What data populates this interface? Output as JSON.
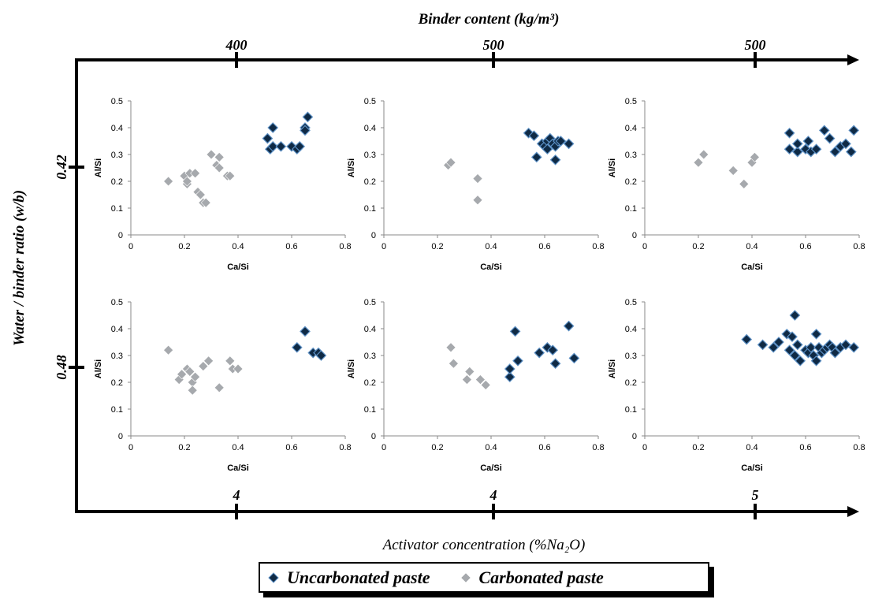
{
  "colors": {
    "uncarbonated": "#0f2a45",
    "carbonated": "#a6a9ad",
    "marker_edge": "#5b8fc4"
  },
  "frame": {
    "top_title": "Binder content (kg/m³)",
    "top_ticks": [
      "400",
      "500",
      "500"
    ],
    "left_title": "Water / binder ratio (w/b)",
    "left_ticks": [
      "0.42",
      "0.48"
    ],
    "bottom_title": "Activator concentration (%Na₂O)",
    "bottom_ticks": [
      "4",
      "4",
      "5"
    ]
  },
  "legend": [
    {
      "label": "Uncarbonated paste",
      "series": "uncarbonated"
    },
    {
      "label": "Carbonated paste",
      "series": "carbonated"
    }
  ],
  "chart_data": [
    {
      "type": "scatter",
      "xlabel": "Ca/Si",
      "ylabel": "Al/Si",
      "xlim": [
        0,
        0.8
      ],
      "ylim": [
        0,
        0.5
      ],
      "xticks": [
        "0",
        "0.2",
        "0.4",
        "0.6",
        "0.8"
      ],
      "yticks": [
        "0",
        "0.1",
        "0.2",
        "0.3",
        "0.4",
        "0.5"
      ],
      "series": [
        {
          "key": "uncarbonated",
          "points": [
            [
              0.51,
              0.36
            ],
            [
              0.52,
              0.32
            ],
            [
              0.53,
              0.4
            ],
            [
              0.53,
              0.33
            ],
            [
              0.56,
              0.33
            ],
            [
              0.6,
              0.33
            ],
            [
              0.62,
              0.32
            ],
            [
              0.63,
              0.33
            ],
            [
              0.65,
              0.4
            ],
            [
              0.65,
              0.39
            ],
            [
              0.66,
              0.44
            ]
          ]
        },
        {
          "key": "carbonated",
          "points": [
            [
              0.14,
              0.2
            ],
            [
              0.2,
              0.22
            ],
            [
              0.21,
              0.19
            ],
            [
              0.21,
              0.2
            ],
            [
              0.22,
              0.23
            ],
            [
              0.24,
              0.23
            ],
            [
              0.25,
              0.16
            ],
            [
              0.26,
              0.15
            ],
            [
              0.27,
              0.12
            ],
            [
              0.28,
              0.12
            ],
            [
              0.3,
              0.3
            ],
            [
              0.32,
              0.26
            ],
            [
              0.33,
              0.29
            ],
            [
              0.33,
              0.25
            ],
            [
              0.36,
              0.22
            ],
            [
              0.37,
              0.22
            ]
          ]
        }
      ]
    },
    {
      "type": "scatter",
      "xlabel": "Ca/Si",
      "ylabel": "Al/Si",
      "xlim": [
        0,
        0.8
      ],
      "ylim": [
        0,
        0.5
      ],
      "xticks": [
        "0",
        "0.2",
        "0.4",
        "0.6",
        "0.8"
      ],
      "yticks": [
        "0",
        "0.1",
        "0.2",
        "0.3",
        "0.4",
        "0.5"
      ],
      "series": [
        {
          "key": "uncarbonated",
          "points": [
            [
              0.54,
              0.38
            ],
            [
              0.56,
              0.37
            ],
            [
              0.57,
              0.29
            ],
            [
              0.59,
              0.34
            ],
            [
              0.6,
              0.33
            ],
            [
              0.61,
              0.35
            ],
            [
              0.61,
              0.32
            ],
            [
              0.62,
              0.36
            ],
            [
              0.63,
              0.34
            ],
            [
              0.64,
              0.33
            ],
            [
              0.64,
              0.28
            ],
            [
              0.65,
              0.35
            ],
            [
              0.66,
              0.35
            ],
            [
              0.69,
              0.34
            ]
          ]
        },
        {
          "key": "carbonated",
          "points": [
            [
              0.24,
              0.26
            ],
            [
              0.25,
              0.27
            ],
            [
              0.35,
              0.21
            ],
            [
              0.35,
              0.13
            ]
          ]
        }
      ]
    },
    {
      "type": "scatter",
      "xlabel": "Ca/Si",
      "ylabel": "Al/Si",
      "xlim": [
        0,
        0.8
      ],
      "ylim": [
        0,
        0.5
      ],
      "xticks": [
        "0",
        "0.2",
        "0.4",
        "0.6",
        "0.8"
      ],
      "yticks": [
        "0",
        "0.1",
        "0.2",
        "0.3",
        "0.4",
        "0.5"
      ],
      "series": [
        {
          "key": "uncarbonated",
          "points": [
            [
              0.54,
              0.38
            ],
            [
              0.54,
              0.32
            ],
            [
              0.57,
              0.31
            ],
            [
              0.57,
              0.34
            ],
            [
              0.6,
              0.32
            ],
            [
              0.61,
              0.35
            ],
            [
              0.62,
              0.31
            ],
            [
              0.64,
              0.32
            ],
            [
              0.67,
              0.39
            ],
            [
              0.69,
              0.36
            ],
            [
              0.71,
              0.31
            ],
            [
              0.73,
              0.33
            ],
            [
              0.75,
              0.34
            ],
            [
              0.77,
              0.31
            ],
            [
              0.78,
              0.39
            ]
          ]
        },
        {
          "key": "carbonated",
          "points": [
            [
              0.2,
              0.27
            ],
            [
              0.22,
              0.3
            ],
            [
              0.33,
              0.24
            ],
            [
              0.37,
              0.19
            ],
            [
              0.4,
              0.27
            ],
            [
              0.41,
              0.29
            ]
          ]
        }
      ]
    },
    {
      "type": "scatter",
      "xlabel": "Ca/Si",
      "ylabel": "Al/Si",
      "xlim": [
        0,
        0.8
      ],
      "ylim": [
        0,
        0.5
      ],
      "xticks": [
        "0",
        "0.2",
        "0.4",
        "0.6",
        "0.8"
      ],
      "yticks": [
        "0",
        "0.1",
        "0.2",
        "0.3",
        "0.4",
        "0.5"
      ],
      "series": [
        {
          "key": "uncarbonated",
          "points": [
            [
              0.62,
              0.33
            ],
            [
              0.65,
              0.39
            ],
            [
              0.68,
              0.31
            ],
            [
              0.7,
              0.31
            ],
            [
              0.71,
              0.3
            ]
          ]
        },
        {
          "key": "carbonated",
          "points": [
            [
              0.14,
              0.32
            ],
            [
              0.18,
              0.21
            ],
            [
              0.19,
              0.23
            ],
            [
              0.21,
              0.25
            ],
            [
              0.22,
              0.24
            ],
            [
              0.23,
              0.2
            ],
            [
              0.23,
              0.17
            ],
            [
              0.24,
              0.22
            ],
            [
              0.27,
              0.26
            ],
            [
              0.29,
              0.28
            ],
            [
              0.33,
              0.18
            ],
            [
              0.37,
              0.28
            ],
            [
              0.38,
              0.25
            ],
            [
              0.4,
              0.25
            ]
          ]
        }
      ]
    },
    {
      "type": "scatter",
      "xlabel": "Ca/Si",
      "ylabel": "Al/Si",
      "xlim": [
        0,
        0.8
      ],
      "ylim": [
        0,
        0.5
      ],
      "xticks": [
        "0",
        "0.2",
        "0.4",
        "0.6",
        "0.8"
      ],
      "yticks": [
        "0",
        "0.1",
        "0.2",
        "0.3",
        "0.4",
        "0.5"
      ],
      "series": [
        {
          "key": "uncarbonated",
          "points": [
            [
              0.47,
              0.22
            ],
            [
              0.47,
              0.25
            ],
            [
              0.49,
              0.39
            ],
            [
              0.5,
              0.28
            ],
            [
              0.58,
              0.31
            ],
            [
              0.61,
              0.33
            ],
            [
              0.63,
              0.32
            ],
            [
              0.64,
              0.27
            ],
            [
              0.69,
              0.41
            ],
            [
              0.71,
              0.29
            ]
          ]
        },
        {
          "key": "carbonated",
          "points": [
            [
              0.25,
              0.33
            ],
            [
              0.26,
              0.27
            ],
            [
              0.31,
              0.21
            ],
            [
              0.32,
              0.24
            ],
            [
              0.36,
              0.21
            ],
            [
              0.38,
              0.19
            ]
          ]
        }
      ]
    },
    {
      "type": "scatter",
      "xlabel": "Ca/Si",
      "ylabel": "Al/Si",
      "xlim": [
        0,
        0.8
      ],
      "ylim": [
        0,
        0.5
      ],
      "xticks": [
        "0",
        "0.2",
        "0.4",
        "0.6",
        "0.8"
      ],
      "yticks": [
        "0",
        "0.1",
        "0.2",
        "0.3",
        "0.4",
        "0.5"
      ],
      "series": [
        {
          "key": "uncarbonated",
          "points": [
            [
              0.38,
              0.36
            ],
            [
              0.44,
              0.34
            ],
            [
              0.48,
              0.33
            ],
            [
              0.5,
              0.35
            ],
            [
              0.53,
              0.38
            ],
            [
              0.54,
              0.32
            ],
            [
              0.55,
              0.37
            ],
            [
              0.56,
              0.45
            ],
            [
              0.56,
              0.3
            ],
            [
              0.57,
              0.34
            ],
            [
              0.58,
              0.28
            ],
            [
              0.6,
              0.32
            ],
            [
              0.61,
              0.31
            ],
            [
              0.62,
              0.33
            ],
            [
              0.63,
              0.3
            ],
            [
              0.64,
              0.38
            ],
            [
              0.64,
              0.28
            ],
            [
              0.65,
              0.33
            ],
            [
              0.66,
              0.31
            ],
            [
              0.67,
              0.32
            ],
            [
              0.68,
              0.33
            ],
            [
              0.69,
              0.34
            ],
            [
              0.7,
              0.33
            ],
            [
              0.71,
              0.31
            ],
            [
              0.73,
              0.33
            ],
            [
              0.75,
              0.34
            ],
            [
              0.78,
              0.33
            ]
          ]
        },
        {
          "key": "carbonated",
          "points": []
        }
      ]
    }
  ]
}
